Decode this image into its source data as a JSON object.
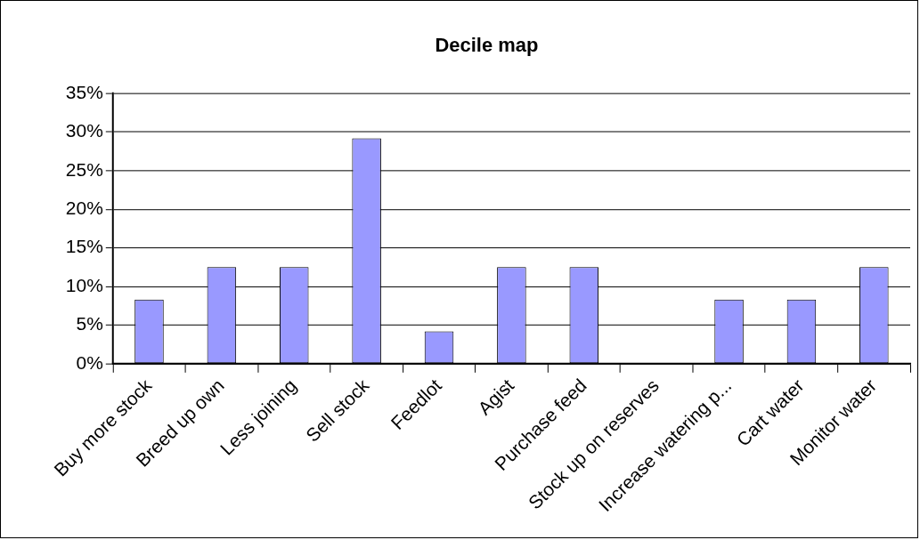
{
  "chart_data": {
    "type": "bar",
    "title": "Decile map",
    "categories": [
      "Buy more stock",
      "Breed up own",
      "Less joining",
      "Sell stock",
      "Feedlot",
      "Agist",
      "Purchase feed",
      "Stock up on reserves",
      "Increase watering p...",
      "Cart water",
      "Monitor water"
    ],
    "values": [
      8.3,
      12.5,
      12.5,
      29.2,
      4.2,
      12.5,
      12.5,
      0,
      8.3,
      8.3,
      12.5
    ],
    "color": "#9999ff",
    "ylim": [
      0,
      35
    ],
    "yticks": [
      {
        "value": 0,
        "label": "0%"
      },
      {
        "value": 5,
        "label": "5%"
      },
      {
        "value": 10,
        "label": "10%"
      },
      {
        "value": 15,
        "label": "15%"
      },
      {
        "value": 20,
        "label": "20%"
      },
      {
        "value": 25,
        "label": "25%"
      },
      {
        "value": 30,
        "label": "30%"
      },
      {
        "value": 35,
        "label": "35%"
      }
    ],
    "grid": "y",
    "legend": false
  }
}
